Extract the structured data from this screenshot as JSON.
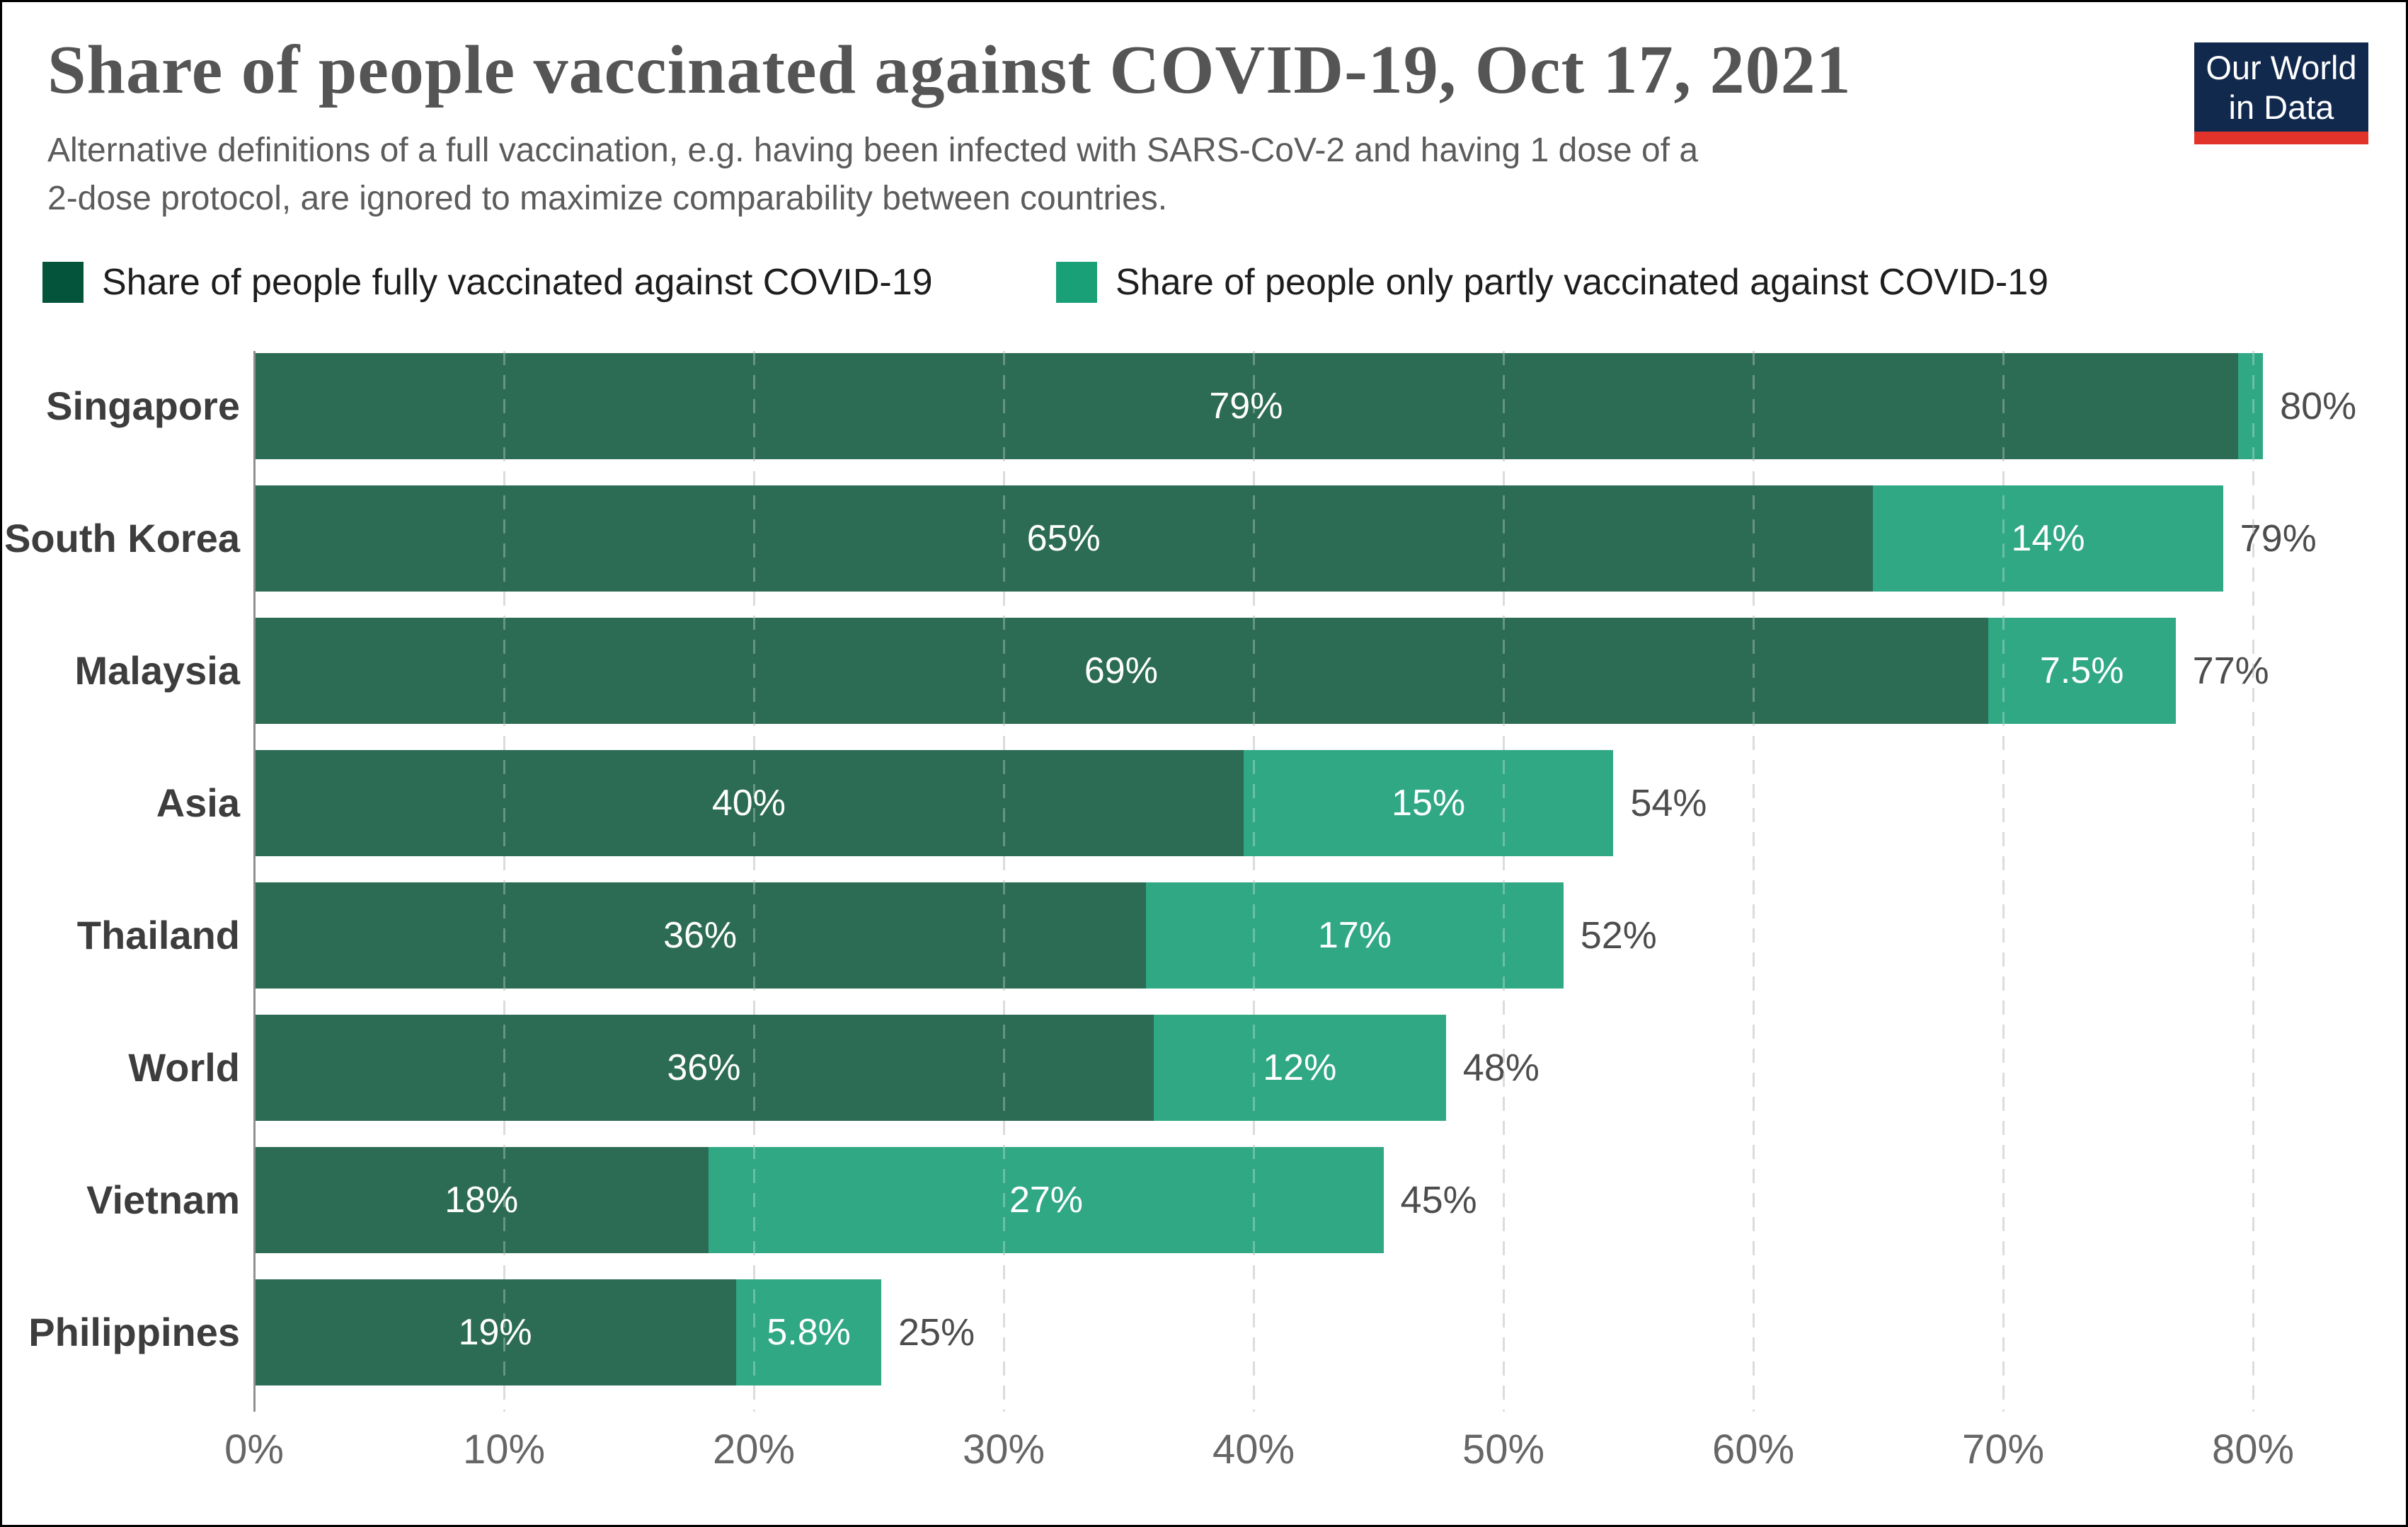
{
  "header": {
    "title": "Share of people vaccinated against COVID-19, Oct 17, 2021",
    "subtitle_line1": "Alternative definitions of a full vaccination, e.g. having been infected with SARS-CoV-2 and having 1 dose of a",
    "subtitle_line2": "2-dose protocol, are ignored to maximize comparability between countries."
  },
  "logo": {
    "line1": "Our World",
    "line2": "in Data",
    "bg_color": "#12294e",
    "underline_color": "#e2332b"
  },
  "legend": [
    {
      "label": "Share of people fully vaccinated against COVID-19",
      "color": "#04543c"
    },
    {
      "label": "Share of people only partly vaccinated against COVID-19",
      "color": "#1aa077"
    }
  ],
  "colors": {
    "bar_full": "#2c6b54",
    "bar_part": "#30a884",
    "bar_value_text": "#ffffff",
    "total_text": "#4d4d4d",
    "tick_text": "#666666"
  },
  "chart_data": {
    "type": "bar",
    "orientation": "horizontal",
    "stacked": true,
    "title": "Share of people vaccinated against COVID-19, Oct 17, 2021",
    "xlabel": "",
    "ylabel": "",
    "xlim": [
      0,
      80
    ],
    "grid": "dashed-vertical",
    "legend_position": "top",
    "categories": [
      "Singapore",
      "South Korea",
      "Malaysia",
      "Asia",
      "Thailand",
      "World",
      "Vietnam",
      "Philippines"
    ],
    "series": [
      {
        "name": "Share of people fully vaccinated against COVID-19",
        "values": [
          79,
          65,
          69,
          40,
          36,
          36,
          18,
          19
        ]
      },
      {
        "name": "Share of people only partly vaccinated against COVID-19",
        "values": [
          1,
          14,
          7.5,
          15,
          17,
          12,
          27,
          5.8
        ]
      }
    ],
    "totals": [
      80,
      79,
      77,
      54,
      52,
      48,
      45,
      25
    ],
    "x_ticks": [
      "0%",
      "10%",
      "20%",
      "30%",
      "40%",
      "50%",
      "60%",
      "70%",
      "80%"
    ],
    "rows": [
      {
        "category": "Singapore",
        "full": 79.4,
        "part": 1.0,
        "full_label": "79%",
        "part_label": "",
        "total_label": "80%"
      },
      {
        "category": "South Korea",
        "full": 64.8,
        "part": 14.0,
        "full_label": "65%",
        "part_label": "14%",
        "total_label": "79%"
      },
      {
        "category": "Malaysia",
        "full": 69.4,
        "part": 7.5,
        "full_label": "69%",
        "part_label": "7.5%",
        "total_label": "77%"
      },
      {
        "category": "Asia",
        "full": 39.6,
        "part": 14.8,
        "full_label": "40%",
        "part_label": "15%",
        "total_label": "54%"
      },
      {
        "category": "Thailand",
        "full": 35.7,
        "part": 16.7,
        "full_label": "36%",
        "part_label": "17%",
        "total_label": "52%"
      },
      {
        "category": "World",
        "full": 36.0,
        "part": 11.7,
        "full_label": "36%",
        "part_label": "12%",
        "total_label": "48%"
      },
      {
        "category": "Vietnam",
        "full": 18.2,
        "part": 27.0,
        "full_label": "18%",
        "part_label": "27%",
        "total_label": "45%"
      },
      {
        "category": "Philippines",
        "full": 19.3,
        "part": 5.8,
        "full_label": "19%",
        "part_label": "5.8%",
        "total_label": "25%"
      }
    ]
  }
}
